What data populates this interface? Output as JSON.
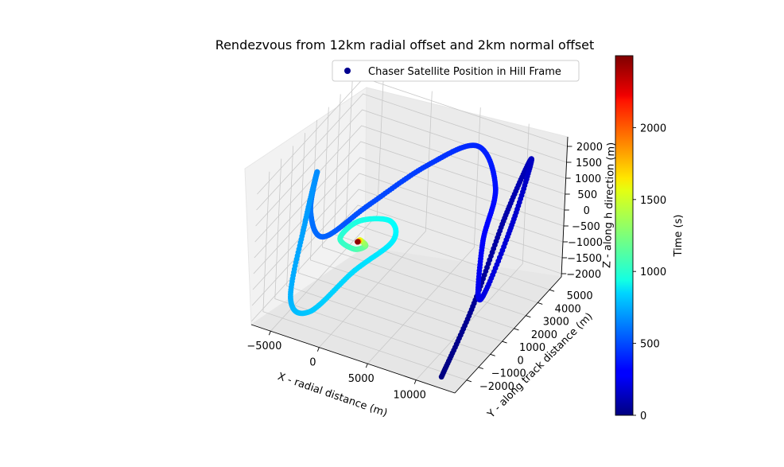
{
  "chart_data": {
    "type": "scatter",
    "projection": "3d",
    "title": "Rendezvous from 12km radial offset and 2km normal offset",
    "xlabel": "X - radial distance (m)",
    "ylabel": "Y - along track distance (m)",
    "zlabel": "Z - along h direction (m)",
    "xlim": [
      -7000,
      14000
    ],
    "ylim": [
      -3000,
      6000
    ],
    "zlim": [
      -2100,
      2300
    ],
    "x_ticks": [
      "−5000",
      "0",
      "5000",
      "10000"
    ],
    "y_ticks": [
      "−2000",
      "−1000",
      "0",
      "1000",
      "2000",
      "3000",
      "4000",
      "5000"
    ],
    "z_ticks": [
      "−2000",
      "−1500",
      "−1000",
      "−500",
      "0",
      "500",
      "1000",
      "1500",
      "2000"
    ],
    "legend": {
      "label": "Chaser Satellite Position in Hill Frame",
      "placement": "top-center",
      "marker_color": "#00008f"
    },
    "colorbar": {
      "label": "Time (s)",
      "min": 0,
      "max": 2500,
      "ticks": [
        "0",
        "500",
        "1000",
        "1500",
        "2000"
      ],
      "colormap": "jet"
    },
    "trajectory_points": [
      {
        "t": 0,
        "x": 12000,
        "y": -2500,
        "z": -2000
      },
      {
        "t": 50,
        "x": 12000,
        "y": 0,
        "z": -800
      },
      {
        "t": 100,
        "x": 11500,
        "y": 3000,
        "z": 800
      },
      {
        "t": 150,
        "x": 11000,
        "y": 5500,
        "z": 1500
      },
      {
        "t": 200,
        "x": 11500,
        "y": 3500,
        "z": 200
      },
      {
        "t": 250,
        "x": 11000,
        "y": 1500,
        "z": -1300
      },
      {
        "t": 300,
        "x": 9500,
        "y": 2800,
        "z": -200
      },
      {
        "t": 350,
        "x": 8500,
        "y": 4600,
        "z": 700
      },
      {
        "t": 400,
        "x": 6000,
        "y": 5000,
        "z": 1600
      },
      {
        "t": 450,
        "x": 3000,
        "y": 3200,
        "z": 1400
      },
      {
        "t": 500,
        "x": -500,
        "y": 1200,
        "z": 600
      },
      {
        "t": 550,
        "x": -3500,
        "y": 0,
        "z": -200
      },
      {
        "t": 600,
        "x": -5500,
        "y": 500,
        "z": 200
      },
      {
        "t": 650,
        "x": -6500,
        "y": 1800,
        "z": 800
      },
      {
        "t": 700,
        "x": -6000,
        "y": 500,
        "z": -200
      },
      {
        "t": 750,
        "x": -4500,
        "y": -1800,
        "z": -1500
      },
      {
        "t": 800,
        "x": -2000,
        "y": -2200,
        "z": -1500
      },
      {
        "t": 850,
        "x": 500,
        "y": -700,
        "z": -600
      },
      {
        "t": 900,
        "x": 2500,
        "y": 900,
        "z": -100
      },
      {
        "t": 950,
        "x": 1500,
        "y": 1500,
        "z": 200
      },
      {
        "t": 1000,
        "x": -500,
        "y": 500,
        "z": 400
      },
      {
        "t": 1050,
        "x": -1000,
        "y": -700,
        "z": 300
      },
      {
        "t": 1100,
        "x": 200,
        "y": -500,
        "z": 0
      },
      {
        "t": 1200,
        "x": 700,
        "y": 100,
        "z": -100
      },
      {
        "t": 1400,
        "x": 100,
        "y": 150,
        "z": 0
      },
      {
        "t": 1700,
        "x": 50,
        "y": 50,
        "z": 0
      },
      {
        "t": 2100,
        "x": 0,
        "y": 0,
        "z": 0
      },
      {
        "t": 2480,
        "x": 0,
        "y": 0,
        "z": 0
      }
    ]
  }
}
